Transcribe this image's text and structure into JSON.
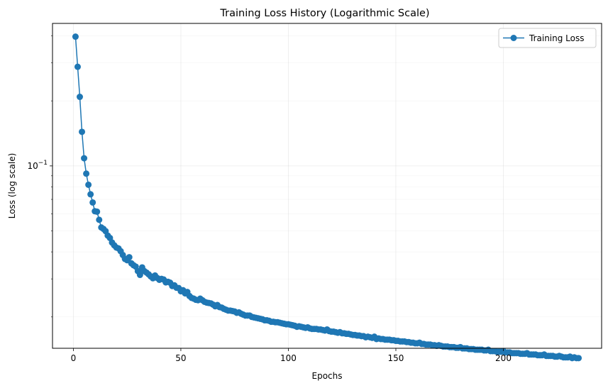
{
  "chart_data": {
    "type": "line",
    "title": "Training Loss History (Logarithmic Scale)",
    "xlabel": "Epochs",
    "ylabel": "Loss (log scale)",
    "yscale": "log",
    "xlim": [
      -9.7,
      245.7
    ],
    "ylim": [
      0.01432,
      0.4565
    ],
    "x_ticks": [
      0,
      50,
      100,
      150,
      200
    ],
    "y_major_ticks": [
      {
        "value": 0.1,
        "label_base": "10",
        "label_exp": "−1"
      }
    ],
    "y_minor_ticks": [
      0.02,
      0.03,
      0.04,
      0.05,
      0.06,
      0.07,
      0.08,
      0.09,
      0.2,
      0.3,
      0.4
    ],
    "grid": true,
    "legend_position": "top-right",
    "series": [
      {
        "name": "Training Loss",
        "color": "#1f77b4",
        "marker": "circle",
        "x_start": 1,
        "x_step": 1,
        "values": [
          0.3965,
          0.2875,
          0.2087,
          0.1438,
          0.1085,
          0.0921,
          0.0818,
          0.0739,
          0.0677,
          0.0617,
          0.0614,
          0.0563,
          0.0519,
          0.0511,
          0.0499,
          0.0476,
          0.0464,
          0.0442,
          0.0429,
          0.0419,
          0.0415,
          0.0403,
          0.0387,
          0.0371,
          0.0366,
          0.0378,
          0.0354,
          0.0347,
          0.0342,
          0.0326,
          0.0313,
          0.0339,
          0.0326,
          0.0321,
          0.0315,
          0.0308,
          0.0302,
          0.0311,
          0.0303,
          0.0297,
          0.03,
          0.0298,
          0.0289,
          0.0291,
          0.0288,
          0.0278,
          0.028,
          0.0273,
          0.0272,
          0.0263,
          0.0266,
          0.0257,
          0.0261,
          0.025,
          0.0245,
          0.0243,
          0.024,
          0.0239,
          0.0243,
          0.0239,
          0.0235,
          0.0233,
          0.0232,
          0.0231,
          0.0228,
          0.0224,
          0.0227,
          0.0222,
          0.0221,
          0.0218,
          0.0216,
          0.0214,
          0.0214,
          0.0213,
          0.0212,
          0.0209,
          0.021,
          0.0207,
          0.0205,
          0.0203,
          0.0203,
          0.0203,
          0.02,
          0.0199,
          0.0198,
          0.0197,
          0.0196,
          0.0195,
          0.0193,
          0.0193,
          0.0192,
          0.019,
          0.019,
          0.0189,
          0.0189,
          0.0188,
          0.0187,
          0.0186,
          0.0185,
          0.0185,
          0.0184,
          0.0183,
          0.0182,
          0.018,
          0.0181,
          0.018,
          0.0179,
          0.0178,
          0.0179,
          0.0177,
          0.0176,
          0.0176,
          0.0176,
          0.0175,
          0.0175,
          0.0174,
          0.0173,
          0.0175,
          0.0172,
          0.0171,
          0.0171,
          0.017,
          0.0169,
          0.017,
          0.0168,
          0.0168,
          0.0167,
          0.0167,
          0.0166,
          0.0165,
          0.0165,
          0.0164,
          0.0164,
          0.0163,
          0.0163,
          0.0161,
          0.0162,
          0.0161,
          0.016,
          0.0162,
          0.0158,
          0.0159,
          0.0158,
          0.0158,
          0.0157,
          0.0157,
          0.0157,
          0.0156,
          0.0156,
          0.0155,
          0.0155,
          0.0154,
          0.0154,
          0.0154,
          0.0153,
          0.0153,
          0.0152,
          0.0152,
          0.0151,
          0.0151,
          0.0152,
          0.015,
          0.015,
          0.0149,
          0.0149,
          0.0149,
          0.0148,
          0.0148,
          0.0147,
          0.0148,
          0.0147,
          0.0146,
          0.0146,
          0.0146,
          0.0145,
          0.0145,
          0.0145,
          0.0144,
          0.0144,
          0.0145,
          0.0143,
          0.0143,
          0.0143,
          0.0142,
          0.0142,
          0.0142,
          0.0141,
          0.0141,
          0.0141,
          0.0141,
          0.014,
          0.014,
          0.0141,
          0.0139,
          0.0139,
          0.0139,
          0.0138,
          0.0138,
          0.0138,
          0.0139,
          0.0137,
          0.0137,
          0.0137,
          0.0136,
          0.0136,
          0.0136,
          0.0136,
          0.0135,
          0.0135,
          0.0135,
          0.0136,
          0.0134,
          0.0134,
          0.0134,
          0.0134,
          0.0133,
          0.0133,
          0.0133,
          0.0134,
          0.0132,
          0.0132,
          0.0132,
          0.0132,
          0.0131,
          0.0131,
          0.0132,
          0.0131,
          0.013,
          0.013,
          0.013,
          0.0131,
          0.0129,
          0.013,
          0.0129,
          0.0129
        ]
      }
    ]
  }
}
